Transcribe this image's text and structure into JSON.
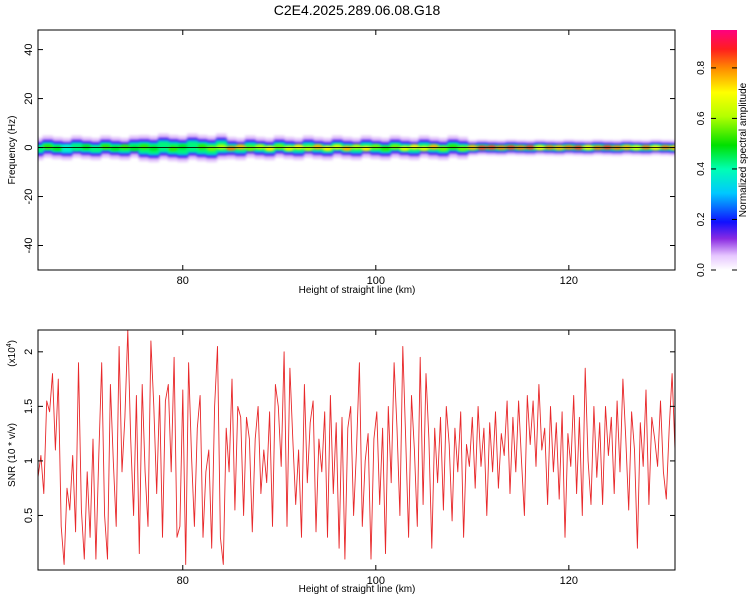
{
  "title": "C2E4.2025.289.06.08.G18",
  "chart_data": [
    {
      "type": "heatmap",
      "x": {
        "label": "Height of straight line (km)",
        "range": [
          65,
          131
        ],
        "ticks": [
          80,
          100,
          120
        ]
      },
      "y": {
        "label": "Frequency (Hz)",
        "range": [
          -50,
          48
        ],
        "ticks": [
          -40,
          -20,
          0,
          20,
          40
        ]
      },
      "colorbar": {
        "label": "Normalized spectral amplitude",
        "range": [
          0,
          0.95
        ],
        "ticks": [
          0.0,
          0.2,
          0.4,
          0.6,
          0.8
        ]
      },
      "ridge": [
        {
          "x": 65,
          "amp": 0.45
        },
        {
          "x": 66,
          "amp": 0.55
        },
        {
          "x": 67,
          "amp": 0.5
        },
        {
          "x": 68,
          "amp": 0.4
        },
        {
          "x": 69,
          "amp": 0.45
        },
        {
          "x": 70,
          "amp": 0.5
        },
        {
          "x": 71,
          "amp": 0.45
        },
        {
          "x": 72,
          "amp": 0.55
        },
        {
          "x": 73,
          "amp": 0.5
        },
        {
          "x": 74,
          "amp": 0.55
        },
        {
          "x": 75,
          "amp": 0.5
        },
        {
          "x": 76,
          "amp": 0.55
        },
        {
          "x": 77,
          "amp": 0.5
        },
        {
          "x": 78,
          "amp": 0.45
        },
        {
          "x": 79,
          "amp": 0.55
        },
        {
          "x": 80,
          "amp": 0.5
        },
        {
          "x": 81,
          "amp": 0.45
        },
        {
          "x": 82,
          "amp": 0.55
        },
        {
          "x": 83,
          "amp": 0.6
        },
        {
          "x": 84,
          "amp": 0.65
        },
        {
          "x": 85,
          "amp": 0.85
        },
        {
          "x": 86,
          "amp": 0.8
        },
        {
          "x": 87,
          "amp": 0.6
        },
        {
          "x": 88,
          "amp": 0.65
        },
        {
          "x": 89,
          "amp": 0.75
        },
        {
          "x": 90,
          "amp": 0.6
        },
        {
          "x": 91,
          "amp": 0.7
        },
        {
          "x": 92,
          "amp": 0.75
        },
        {
          "x": 93,
          "amp": 0.65
        },
        {
          "x": 94,
          "amp": 0.8
        },
        {
          "x": 95,
          "amp": 0.75
        },
        {
          "x": 96,
          "amp": 0.7
        },
        {
          "x": 97,
          "amp": 0.8
        },
        {
          "x": 98,
          "amp": 0.65
        },
        {
          "x": 99,
          "amp": 0.75
        },
        {
          "x": 100,
          "amp": 0.6
        },
        {
          "x": 101,
          "amp": 0.55
        },
        {
          "x": 102,
          "amp": 0.6
        },
        {
          "x": 103,
          "amp": 0.7
        },
        {
          "x": 104,
          "amp": 0.75
        },
        {
          "x": 105,
          "amp": 0.7
        },
        {
          "x": 106,
          "amp": 0.8
        },
        {
          "x": 107,
          "amp": 0.6
        },
        {
          "x": 108,
          "amp": 0.55
        },
        {
          "x": 109,
          "amp": 0.6
        },
        {
          "x": 110,
          "amp": 0.8
        },
        {
          "x": 111,
          "amp": 0.9
        },
        {
          "x": 112,
          "amp": 0.9
        },
        {
          "x": 113,
          "amp": 0.85
        },
        {
          "x": 114,
          "amp": 0.9
        },
        {
          "x": 115,
          "amp": 0.85
        },
        {
          "x": 116,
          "amp": 0.9
        },
        {
          "x": 117,
          "amp": 0.75
        },
        {
          "x": 118,
          "amp": 0.85
        },
        {
          "x": 119,
          "amp": 0.8
        },
        {
          "x": 120,
          "amp": 0.85
        },
        {
          "x": 121,
          "amp": 0.9
        },
        {
          "x": 122,
          "amp": 0.75
        },
        {
          "x": 123,
          "amp": 0.85
        },
        {
          "x": 124,
          "amp": 0.9
        },
        {
          "x": 125,
          "amp": 0.85
        },
        {
          "x": 126,
          "amp": 0.8
        },
        {
          "x": 127,
          "amp": 0.7
        },
        {
          "x": 128,
          "amp": 0.85
        },
        {
          "x": 129,
          "amp": 0.75
        },
        {
          "x": 130,
          "amp": 0.85
        },
        {
          "x": 131,
          "amp": 0.8
        }
      ]
    },
    {
      "type": "line",
      "x": {
        "label": "Height of straight line (km)",
        "range": [
          65,
          131
        ],
        "ticks": [
          80,
          100,
          120
        ]
      },
      "y": {
        "label": "SNR (10 * v/v)",
        "multiplier": "(x10",
        "multiplier_exp": "4",
        "multiplier_close": ")",
        "range": [
          0,
          2.2
        ],
        "ticks": [
          0.5,
          1,
          1.5,
          2
        ]
      },
      "color": "#e8282a",
      "points": [
        [
          65.0,
          0.85
        ],
        [
          65.3,
          1.05
        ],
        [
          65.6,
          0.7
        ],
        [
          65.9,
          1.55
        ],
        [
          66.2,
          1.45
        ],
        [
          66.5,
          1.8
        ],
        [
          66.8,
          1.1
        ],
        [
          67.1,
          1.75
        ],
        [
          67.4,
          0.4
        ],
        [
          67.7,
          0.05
        ],
        [
          68.0,
          0.75
        ],
        [
          68.3,
          0.55
        ],
        [
          68.6,
          1.05
        ],
        [
          68.9,
          0.35
        ],
        [
          69.2,
          1.9
        ],
        [
          69.5,
          0.55
        ],
        [
          69.8,
          0.1
        ],
        [
          70.1,
          0.9
        ],
        [
          70.4,
          0.3
        ],
        [
          70.7,
          1.2
        ],
        [
          71.0,
          0.1
        ],
        [
          71.3,
          1.05
        ],
        [
          71.6,
          1.9
        ],
        [
          71.9,
          0.5
        ],
        [
          72.2,
          0.1
        ],
        [
          72.5,
          1.7
        ],
        [
          72.8,
          1.0
        ],
        [
          73.1,
          0.4
        ],
        [
          73.4,
          2.05
        ],
        [
          73.7,
          0.9
        ],
        [
          74.0,
          1.4
        ],
        [
          74.3,
          2.2
        ],
        [
          74.6,
          1.2
        ],
        [
          74.9,
          0.5
        ],
        [
          75.2,
          1.6
        ],
        [
          75.5,
          0.15
        ],
        [
          75.8,
          1.7
        ],
        [
          76.1,
          0.9
        ],
        [
          76.4,
          0.4
        ],
        [
          76.7,
          2.1
        ],
        [
          77.0,
          1.5
        ],
        [
          77.3,
          0.7
        ],
        [
          77.6,
          1.6
        ],
        [
          77.9,
          0.3
        ],
        [
          78.2,
          1.55
        ],
        [
          78.5,
          1.7
        ],
        [
          78.8,
          0.9
        ],
        [
          79.1,
          1.95
        ],
        [
          79.4,
          0.3
        ],
        [
          79.7,
          0.4
        ],
        [
          80.0,
          1.65
        ],
        [
          80.3,
          0.05
        ],
        [
          80.6,
          1.9
        ],
        [
          80.9,
          1.05
        ],
        [
          81.2,
          0.4
        ],
        [
          81.5,
          1.3
        ],
        [
          81.8,
          1.6
        ],
        [
          82.1,
          0.3
        ],
        [
          82.4,
          0.9
        ],
        [
          82.7,
          1.1
        ],
        [
          83.0,
          0.2
        ],
        [
          83.3,
          1.5
        ],
        [
          83.6,
          2.05
        ],
        [
          83.9,
          0.3
        ],
        [
          84.2,
          0.05
        ],
        [
          84.5,
          1.3
        ],
        [
          84.8,
          0.9
        ],
        [
          85.1,
          1.75
        ],
        [
          85.4,
          0.55
        ],
        [
          85.7,
          1.5
        ],
        [
          86.0,
          1.4
        ],
        [
          86.3,
          0.5
        ],
        [
          86.6,
          1.4
        ],
        [
          86.9,
          1.2
        ],
        [
          87.2,
          0.35
        ],
        [
          87.5,
          1.2
        ],
        [
          87.8,
          1.5
        ],
        [
          88.1,
          0.7
        ],
        [
          88.4,
          1.1
        ],
        [
          88.7,
          0.8
        ],
        [
          89.0,
          1.45
        ],
        [
          89.3,
          0.4
        ],
        [
          89.6,
          1.7
        ],
        [
          89.9,
          1.5
        ],
        [
          90.2,
          0.95
        ],
        [
          90.5,
          2.0
        ],
        [
          90.8,
          0.4
        ],
        [
          91.1,
          1.85
        ],
        [
          91.4,
          1.2
        ],
        [
          91.7,
          0.6
        ],
        [
          92.0,
          1.1
        ],
        [
          92.3,
          0.3
        ],
        [
          92.6,
          1.7
        ],
        [
          92.9,
          0.8
        ],
        [
          93.2,
          1.35
        ],
        [
          93.5,
          1.55
        ],
        [
          93.8,
          0.35
        ],
        [
          94.1,
          1.2
        ],
        [
          94.4,
          0.9
        ],
        [
          94.7,
          1.45
        ],
        [
          95.0,
          0.3
        ],
        [
          95.3,
          1.6
        ],
        [
          95.6,
          0.7
        ],
        [
          95.9,
          1.35
        ],
        [
          96.2,
          0.2
        ],
        [
          96.5,
          1.4
        ],
        [
          96.8,
          0.1
        ],
        [
          97.1,
          1.3
        ],
        [
          97.4,
          1.5
        ],
        [
          97.7,
          0.5
        ],
        [
          98.0,
          1.1
        ],
        [
          98.3,
          1.9
        ],
        [
          98.6,
          0.4
        ],
        [
          98.9,
          1.0
        ],
        [
          99.2,
          1.25
        ],
        [
          99.5,
          0.1
        ],
        [
          99.8,
          1.2
        ],
        [
          100.1,
          1.45
        ],
        [
          100.4,
          0.6
        ],
        [
          100.7,
          1.3
        ],
        [
          101.0,
          0.15
        ],
        [
          101.3,
          1.5
        ],
        [
          101.6,
          0.8
        ],
        [
          101.9,
          1.9
        ],
        [
          102.2,
          1.3
        ],
        [
          102.5,
          0.5
        ],
        [
          102.8,
          2.05
        ],
        [
          103.1,
          1.2
        ],
        [
          103.4,
          0.3
        ],
        [
          103.7,
          1.6
        ],
        [
          104.0,
          1.1
        ],
        [
          104.3,
          0.4
        ],
        [
          104.6,
          1.95
        ],
        [
          104.9,
          0.6
        ],
        [
          105.2,
          1.8
        ],
        [
          105.5,
          1.2
        ],
        [
          105.8,
          0.2
        ],
        [
          106.1,
          1.3
        ],
        [
          106.4,
          0.8
        ],
        [
          106.7,
          1.4
        ],
        [
          107.0,
          0.55
        ],
        [
          107.3,
          1.5
        ],
        [
          107.6,
          1.15
        ],
        [
          107.9,
          0.45
        ],
        [
          108.2,
          1.3
        ],
        [
          108.5,
          0.9
        ],
        [
          108.8,
          1.45
        ],
        [
          109.1,
          0.3
        ],
        [
          109.4,
          1.15
        ],
        [
          109.7,
          0.95
        ],
        [
          110.0,
          1.4
        ],
        [
          110.3,
          0.75
        ],
        [
          110.6,
          1.5
        ],
        [
          110.9,
          0.95
        ],
        [
          111.2,
          1.3
        ],
        [
          111.5,
          0.5
        ],
        [
          111.8,
          1.35
        ],
        [
          112.1,
          0.9
        ],
        [
          112.4,
          1.45
        ],
        [
          112.7,
          0.75
        ],
        [
          113.0,
          1.25
        ],
        [
          113.3,
          1.05
        ],
        [
          113.6,
          1.55
        ],
        [
          113.9,
          0.7
        ],
        [
          114.2,
          1.4
        ],
        [
          114.5,
          0.9
        ],
        [
          114.8,
          1.55
        ],
        [
          115.1,
          1.0
        ],
        [
          115.4,
          0.5
        ],
        [
          115.7,
          1.6
        ],
        [
          116.0,
          1.15
        ],
        [
          116.3,
          1.55
        ],
        [
          116.6,
          0.95
        ],
        [
          116.9,
          1.7
        ],
        [
          117.2,
          1.1
        ],
        [
          117.5,
          1.3
        ],
        [
          117.8,
          0.6
        ],
        [
          118.1,
          1.5
        ],
        [
          118.4,
          0.9
        ],
        [
          118.7,
          1.35
        ],
        [
          119.0,
          0.65
        ],
        [
          119.3,
          1.45
        ],
        [
          119.6,
          0.3
        ],
        [
          119.9,
          1.25
        ],
        [
          120.2,
          0.95
        ],
        [
          120.5,
          1.6
        ],
        [
          120.8,
          0.7
        ],
        [
          121.1,
          1.4
        ],
        [
          121.4,
          0.5
        ],
        [
          121.7,
          1.85
        ],
        [
          122.0,
          1.0
        ],
        [
          122.3,
          0.6
        ],
        [
          122.6,
          1.5
        ],
        [
          122.9,
          0.85
        ],
        [
          123.2,
          1.35
        ],
        [
          123.5,
          0.6
        ],
        [
          123.8,
          1.5
        ],
        [
          124.1,
          1.05
        ],
        [
          124.4,
          1.4
        ],
        [
          124.7,
          0.7
        ],
        [
          125.0,
          1.55
        ],
        [
          125.3,
          0.9
        ],
        [
          125.6,
          1.75
        ],
        [
          125.9,
          1.2
        ],
        [
          126.2,
          0.55
        ],
        [
          126.5,
          1.45
        ],
        [
          126.8,
          1.1
        ],
        [
          127.1,
          0.2
        ],
        [
          127.4,
          1.35
        ],
        [
          127.7,
          0.95
        ],
        [
          128.0,
          1.65
        ],
        [
          128.3,
          0.6
        ],
        [
          128.6,
          1.4
        ],
        [
          128.9,
          1.2
        ],
        [
          129.2,
          0.95
        ],
        [
          129.5,
          1.55
        ],
        [
          129.8,
          0.9
        ],
        [
          130.1,
          0.65
        ],
        [
          130.4,
          1.3
        ],
        [
          130.7,
          1.8
        ],
        [
          131.0,
          1.1
        ]
      ]
    }
  ]
}
